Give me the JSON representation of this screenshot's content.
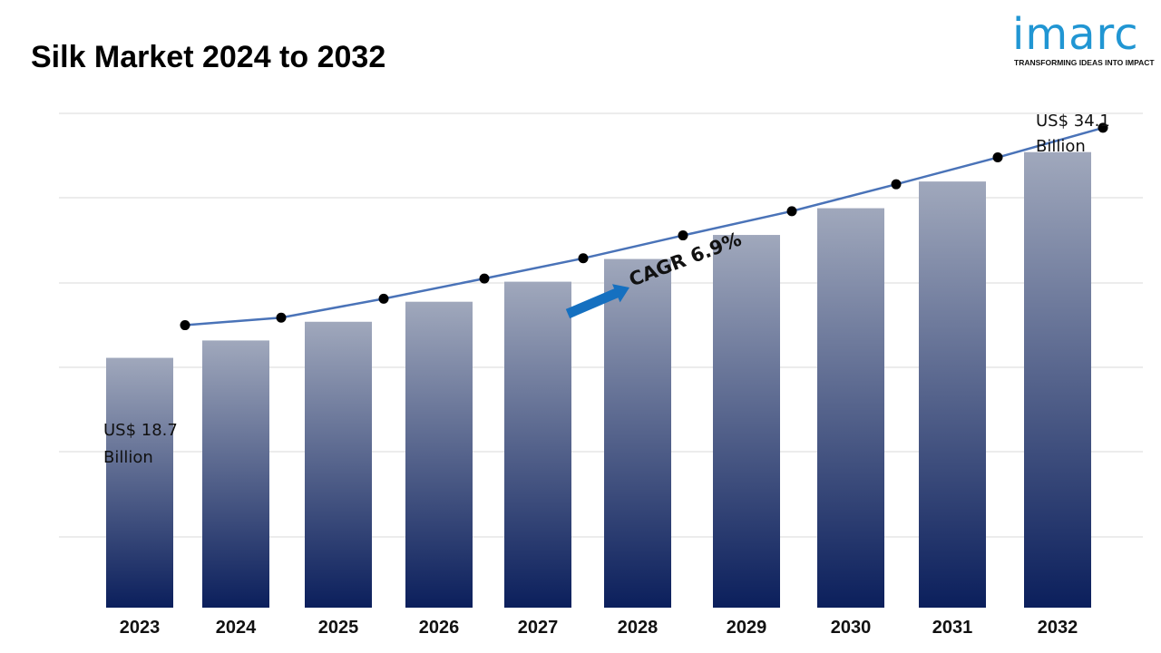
{
  "header": {
    "title": "Silk Market 2024 to 2032",
    "logo_text": "imarc",
    "logo_tagline": "TRANSFORMING IDEAS INTO IMPACT"
  },
  "chart_data": {
    "type": "bar",
    "title": "Silk Market 2024 to 2032",
    "categories": [
      "2023",
      "2024",
      "2025",
      "2026",
      "2027",
      "2028",
      "2029",
      "2030",
      "2031",
      "2032"
    ],
    "series": [
      {
        "values": [
          18.7,
          20.0,
          21.4,
          22.9,
          24.4,
          26.1,
          27.9,
          29.9,
          31.9,
          34.1
        ]
      }
    ],
    "ylim": [
      0,
      37
    ],
    "grid": true,
    "annotations": {
      "start_label": [
        "US$ 18.7",
        "Billion"
      ],
      "end_label": [
        "US$ 34.1",
        "Billion"
      ],
      "cagr": "CAGR 6.9%"
    },
    "colors": {
      "bar_top": "#a0a8bc",
      "bar_bottom": "#0b1f5c",
      "line": "#4a73b8",
      "marker": "#000000",
      "arrow": "#1570c0",
      "grid": "#d9d9d9"
    }
  }
}
